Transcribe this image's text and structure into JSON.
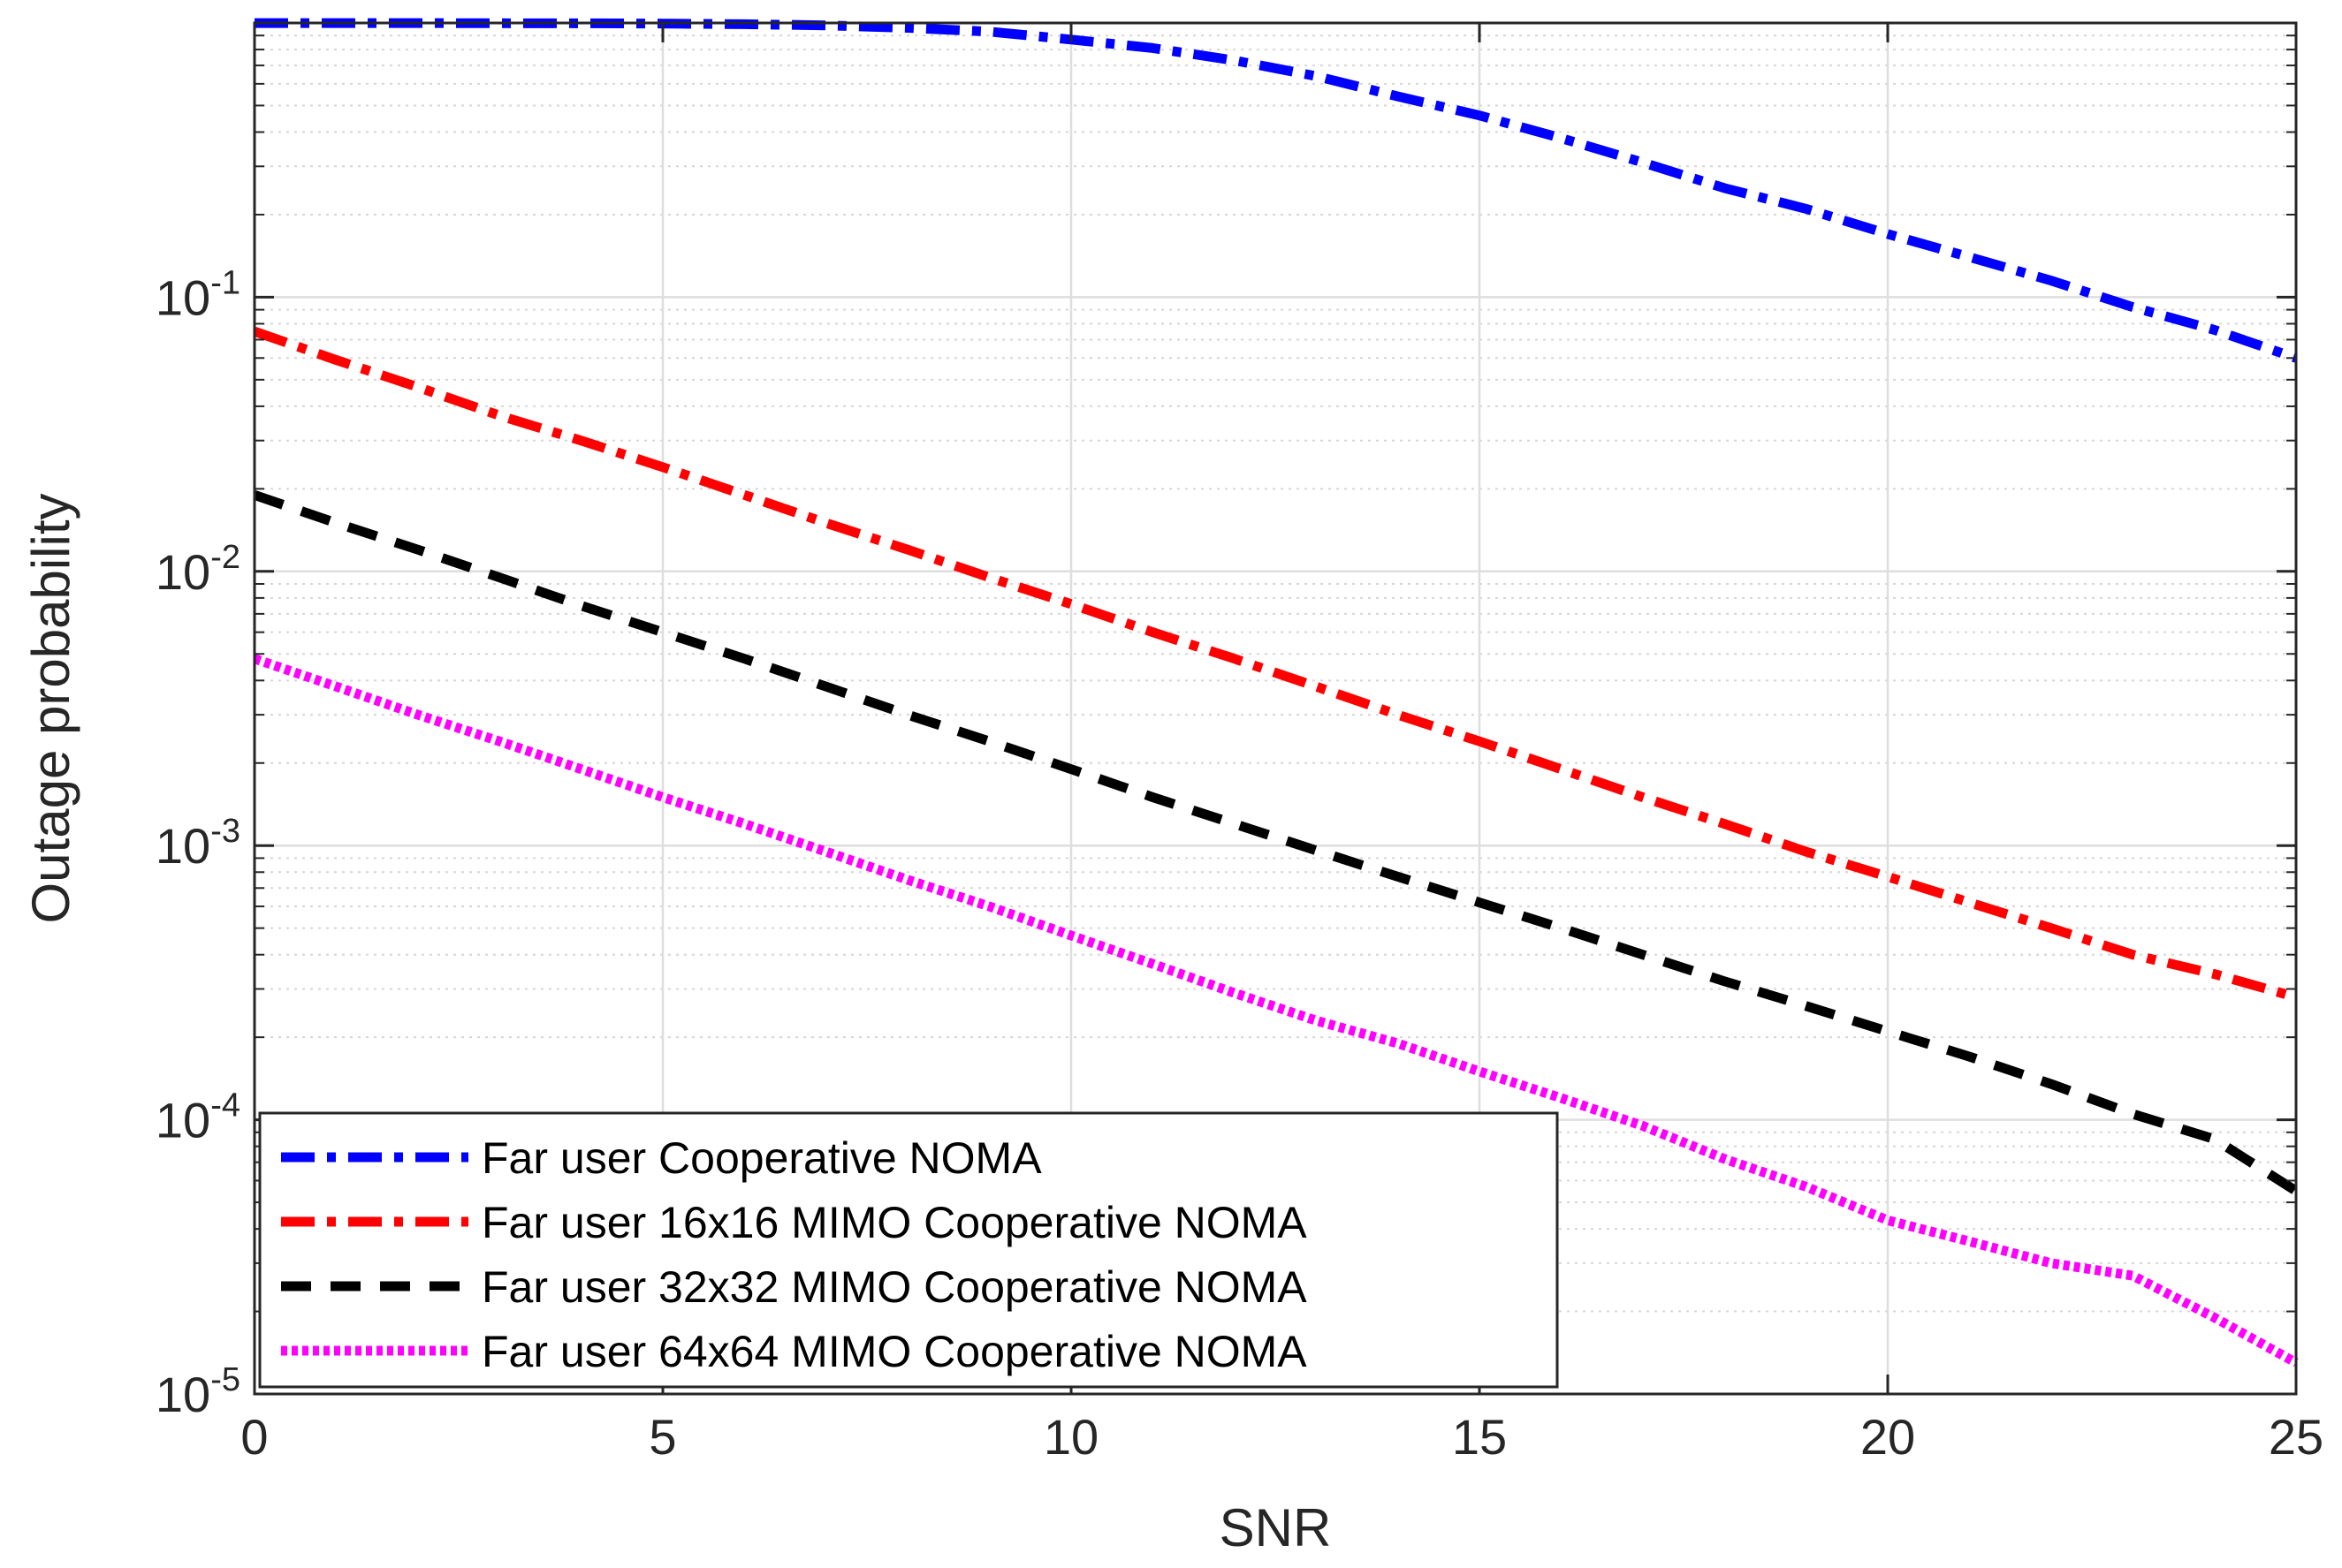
{
  "chart_data": {
    "type": "line",
    "title": "",
    "xlabel": "SNR",
    "ylabel": "Outage probability",
    "xlim": [
      0,
      25
    ],
    "ylim": [
      1e-05,
      1
    ],
    "yscale": "log",
    "grid": true,
    "x_ticks": [
      {
        "value": 0,
        "label": "0"
      },
      {
        "value": 5,
        "label": "5"
      },
      {
        "value": 10,
        "label": "10"
      },
      {
        "value": 15,
        "label": "15"
      },
      {
        "value": 20,
        "label": "20"
      },
      {
        "value": 25,
        "label": "25"
      }
    ],
    "y_ticks": [
      {
        "value": 1e-05,
        "base": "10",
        "exp": "-5"
      },
      {
        "value": 0.0001,
        "base": "10",
        "exp": "-4"
      },
      {
        "value": 0.001,
        "base": "10",
        "exp": "-3"
      },
      {
        "value": 0.01,
        "base": "10",
        "exp": "-2"
      },
      {
        "value": 0.1,
        "base": "10",
        "exp": "-1"
      }
    ],
    "legend_position": "bottom-left",
    "x": [
      0,
      1,
      2,
      3,
      4,
      5,
      6,
      7,
      8,
      9,
      10,
      11,
      12,
      13,
      14,
      15,
      16,
      17,
      18,
      19,
      20,
      21,
      22,
      23,
      24,
      25
    ],
    "series": [
      {
        "name": "Far user Cooperative NOMA",
        "color": "#0000FF",
        "style": "dashdot",
        "values": [
          0.999,
          0.999,
          0.999,
          0.998,
          0.997,
          0.995,
          0.99,
          0.98,
          0.96,
          0.93,
          0.87,
          0.81,
          0.73,
          0.64,
          0.54,
          0.46,
          0.38,
          0.31,
          0.25,
          0.21,
          0.17,
          0.14,
          0.115,
          0.092,
          0.076,
          0.06
        ]
      },
      {
        "name": "Far user 16x16 MIMO Cooperative NOMA",
        "color": "#FF0000",
        "style": "dashdot",
        "values": [
          0.075,
          0.059,
          0.047,
          0.037,
          0.03,
          0.024,
          0.019,
          0.015,
          0.012,
          0.0095,
          0.0076,
          0.006,
          0.0048,
          0.0038,
          0.003,
          0.0024,
          0.0019,
          0.0015,
          0.0012,
          0.00095,
          0.00077,
          0.00062,
          0.0005,
          0.0004,
          0.00034,
          0.00028
        ]
      },
      {
        "name": "Far user 32x32 MIMO Cooperative NOMA",
        "color": "#000000",
        "style": "dashed",
        "values": [
          0.019,
          0.015,
          0.012,
          0.0095,
          0.0075,
          0.006,
          0.0048,
          0.0038,
          0.003,
          0.0024,
          0.0019,
          0.0015,
          0.0012,
          0.00096,
          0.00077,
          0.00062,
          0.0005,
          0.0004,
          0.00032,
          0.00026,
          0.00021,
          0.00017,
          0.000135,
          0.000105,
          8.5e-05,
          5.5e-05
        ]
      },
      {
        "name": "Far user 64x64 MIMO Cooperative NOMA",
        "color": "#FF00FF",
        "style": "dotted",
        "values": [
          0.0048,
          0.0038,
          0.003,
          0.0024,
          0.0019,
          0.0015,
          0.0012,
          0.00095,
          0.00075,
          0.0006,
          0.00047,
          0.00037,
          0.00029,
          0.00023,
          0.00019,
          0.00015,
          0.00012,
          9.5e-05,
          7.2e-05,
          5.7e-05,
          4.3e-05,
          3.6e-05,
          3e-05,
          2.7e-05,
          1.9e-05,
          1.3e-05
        ]
      }
    ]
  }
}
